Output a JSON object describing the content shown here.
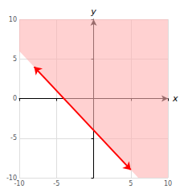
{
  "chart_data": {
    "type": "line",
    "xlabel": "x",
    "ylabel": "y",
    "xlim": [
      -10,
      10
    ],
    "ylim": [
      -10,
      10
    ],
    "xticks": [
      -10,
      -5,
      5,
      10
    ],
    "yticks": [
      -10,
      -5,
      0,
      5,
      10
    ],
    "grid": true,
    "series": [
      {
        "type": "line",
        "color": "#ff0000",
        "x": [
          -8,
          5
        ],
        "values": [
          4,
          -9
        ]
      },
      {
        "type": "area",
        "color": "#ffb3b3",
        "x": [
          -10,
          -10,
          10,
          10,
          6
        ],
        "values": [
          6,
          10,
          10,
          -10,
          -10
        ]
      }
    ]
  }
}
